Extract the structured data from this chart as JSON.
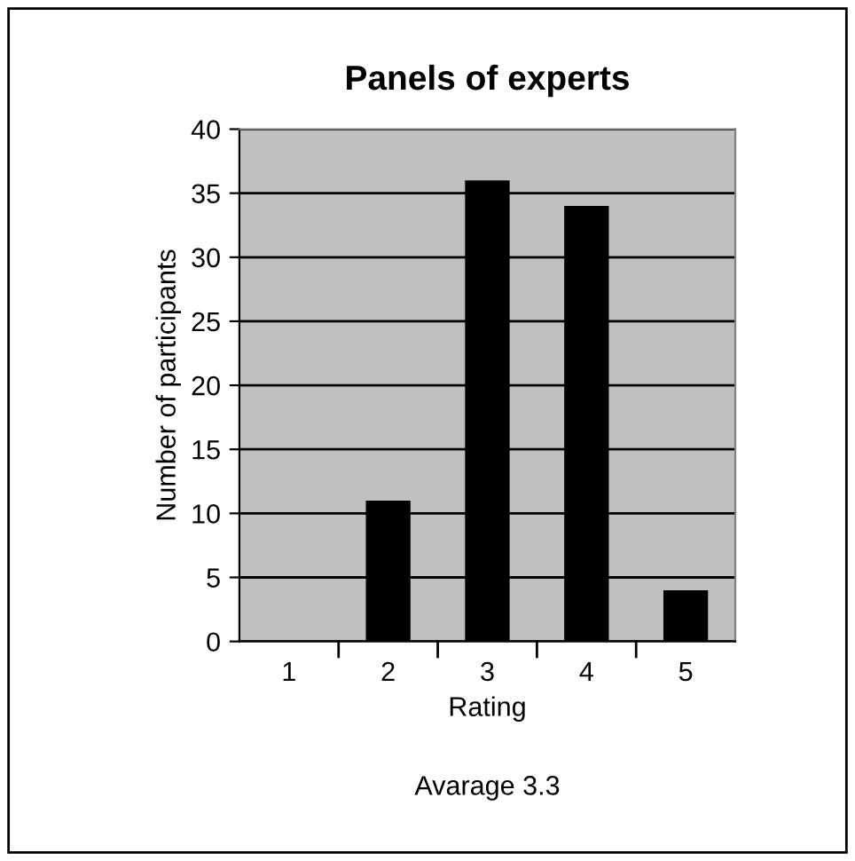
{
  "chart_data": {
    "type": "bar",
    "title": "Panels of experts",
    "xlabel": "Rating",
    "ylabel": "Number of participants",
    "categories": [
      "1",
      "2",
      "3",
      "4",
      "5"
    ],
    "values": [
      0,
      11,
      36,
      34,
      4
    ],
    "color": "#000000",
    "ylim": [
      0,
      40
    ],
    "yticks": [
      0,
      5,
      10,
      15,
      20,
      25,
      30,
      35,
      40
    ],
    "grid": "y",
    "annotations": [
      "Avarage 3.3"
    ]
  }
}
